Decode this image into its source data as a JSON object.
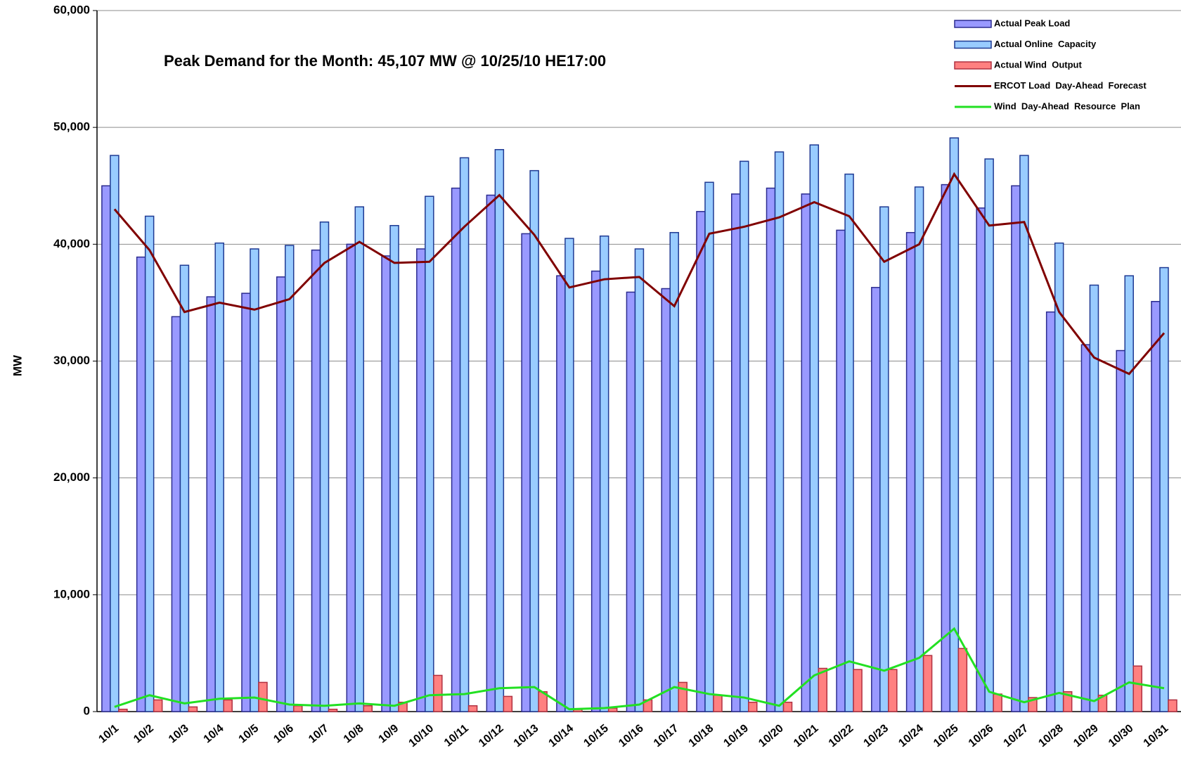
{
  "chart_data": {
    "type": "bar",
    "annotation": "Peak Demand for the Month: 45,107  MW @ 10/25/10  HE17:00",
    "y_label": "MW",
    "categories": [
      "10/1",
      "10/2",
      "10/3",
      "10/4",
      "10/5",
      "10/6",
      "10/7",
      "10/8",
      "10/9",
      "10/10",
      "10/11",
      "10/12",
      "10/13",
      "10/14",
      "10/15",
      "10/16",
      "10/17",
      "10/18",
      "10/19",
      "10/20",
      "10/21",
      "10/22",
      "10/23",
      "10/24",
      "10/25",
      "10/26",
      "10/27",
      "10/28",
      "10/29",
      "10/30",
      "10/31"
    ],
    "series": [
      {
        "name": "Actual Peak Load",
        "kind": "bar",
        "color": "#9999ff",
        "stroke": "#2b2b8f",
        "values": [
          45000,
          38900,
          33800,
          35500,
          35800,
          37200,
          39500,
          40000,
          39000,
          39600,
          44800,
          44200,
          40900,
          37300,
          37700,
          35900,
          36200,
          42800,
          44300,
          44800,
          44300,
          41200,
          36300,
          41000,
          45100,
          43100,
          45000,
          34200,
          31400,
          30900,
          35100
        ]
      },
      {
        "name": "Actual Online  Capacity",
        "kind": "bar",
        "color": "#99ccff",
        "stroke": "#1f3a93",
        "values": [
          47600,
          42400,
          38200,
          40100,
          39600,
          39900,
          41900,
          43200,
          41600,
          44100,
          47400,
          48100,
          46300,
          40500,
          40700,
          39600,
          41000,
          45300,
          47100,
          47900,
          48500,
          46000,
          43200,
          44900,
          49100,
          47300,
          47600,
          40100,
          36500,
          37300,
          38000
        ]
      },
      {
        "name": "Actual Wind  Output",
        "kind": "bar",
        "color": "#ff8080",
        "stroke": "#b03040",
        "values": [
          200,
          1000,
          400,
          1000,
          2500,
          500,
          200,
          500,
          800,
          3100,
          500,
          1300,
          1700,
          200,
          300,
          1000,
          2500,
          1400,
          800,
          800,
          3700,
          3600,
          3600,
          4800,
          5400,
          1500,
          1200,
          1700,
          1400,
          3900,
          1000
        ]
      },
      {
        "name": "ERCOT Load  Day-Ahead  Forecast",
        "kind": "line",
        "color": "#800000",
        "values": [
          43000,
          39500,
          34200,
          35000,
          34400,
          35300,
          38400,
          40200,
          38400,
          38500,
          41500,
          44200,
          40800,
          36300,
          37000,
          37200,
          34700,
          40900,
          41500,
          42300,
          43600,
          42400,
          38500,
          40000,
          46000,
          41600,
          41900,
          34200,
          30300,
          28900,
          32400
        ]
      },
      {
        "name": "Wind  Day-Ahead  Resource  Plan",
        "kind": "line",
        "color": "#22e022",
        "values": [
          400,
          1400,
          700,
          1100,
          1200,
          600,
          500,
          700,
          500,
          1400,
          1500,
          2000,
          2100,
          200,
          300,
          600,
          2100,
          1500,
          1200,
          500,
          3100,
          4300,
          3500,
          4600,
          7100,
          1700,
          800,
          1600,
          900,
          2500,
          2000
        ]
      }
    ],
    "ylim": [
      0,
      60000
    ],
    "yticks": [
      0,
      {
        "value": 10000,
        "label": "10,000"
      },
      {
        "value": 20000,
        "label": "20,000"
      },
      {
        "value": 30000,
        "label": "30,000"
      },
      {
        "value": 40000,
        "label": "40,000"
      },
      {
        "value": 50000,
        "label": "50,000"
      },
      {
        "value": 60000,
        "label": "60,000"
      }
    ],
    "grid": true
  }
}
